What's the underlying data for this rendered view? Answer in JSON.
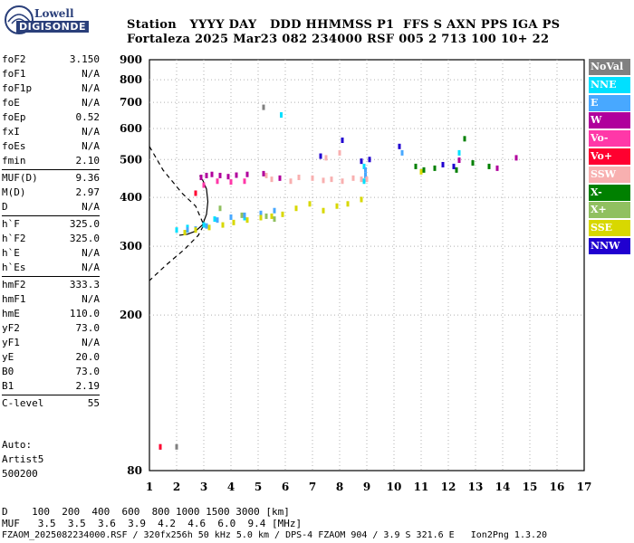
{
  "logo": {
    "top": "Lowell",
    "bottom": "DIGISONDE"
  },
  "header": {
    "line1": "Station   YYYY DAY   DDD HHMMSS P1  FFS S AXN PPS IGA PS",
    "line2": "Fortaleza 2025 Mar23 082 234000 RSF 005 2 713 100 10+ 22"
  },
  "params": [
    [
      {
        "name": "foF2",
        "value": "3.150"
      },
      {
        "name": "foF1",
        "value": "N/A"
      },
      {
        "name": "foF1p",
        "value": "N/A"
      },
      {
        "name": "foE",
        "value": "N/A"
      },
      {
        "name": "foEp",
        "value": "0.52"
      },
      {
        "name": "fxI",
        "value": "N/A"
      },
      {
        "name": "foEs",
        "value": "N/A"
      },
      {
        "name": "fmin",
        "value": "2.10"
      }
    ],
    [
      {
        "name": "MUF(D)",
        "value": "9.36"
      },
      {
        "name": "M(D)",
        "value": "2.97"
      },
      {
        "name": "D",
        "value": "N/A"
      }
    ],
    [
      {
        "name": "h`F",
        "value": "325.0"
      },
      {
        "name": "h`F2",
        "value": "325.0"
      },
      {
        "name": "h`E",
        "value": "N/A"
      },
      {
        "name": "h`Es",
        "value": "N/A"
      }
    ],
    [
      {
        "name": "hmF2",
        "value": "333.3"
      },
      {
        "name": "hmF1",
        "value": "N/A"
      },
      {
        "name": "hmE",
        "value": "110.0"
      },
      {
        "name": "yF2",
        "value": "73.0"
      },
      {
        "name": "yF1",
        "value": "N/A"
      },
      {
        "name": "yE",
        "value": "20.0"
      },
      {
        "name": "B0",
        "value": "73.0"
      },
      {
        "name": "B1",
        "value": "2.19"
      }
    ],
    [
      {
        "name": "C-level",
        "value": "55"
      }
    ]
  ],
  "auto": {
    "line1": "Auto:",
    "line2": "Artist5",
    "line3": "500200"
  },
  "footer": {
    "line1": "D    100  200  400  600  800 1000 1500 3000 [km]",
    "line2": "MUF   3.5  3.5  3.6  3.9  4.2  4.6  6.0  9.4 [MHz]",
    "line3": "FZAOM_2025082234000.RSF / 320fx256h 50 kHz 5.0 km / DPS-4 FZAOM 904 / 3.9 S 321.6 E   Ion2Png 1.3.20"
  },
  "legend": [
    {
      "label": "NoVal",
      "color": "#808080"
    },
    {
      "label": "NNE",
      "color": "#00e0ff"
    },
    {
      "label": "E",
      "color": "#48a8ff"
    },
    {
      "label": "W",
      "color": "#b0009c"
    },
    {
      "label": "Vo-",
      "color": "#ff38a8"
    },
    {
      "label": "Vo+",
      "color": "#ff0030"
    },
    {
      "label": "SSW",
      "color": "#f8b0b0"
    },
    {
      "label": "X-",
      "color": "#008000"
    },
    {
      "label": "X+",
      "color": "#90c060"
    },
    {
      "label": "SSE",
      "color": "#d8d800"
    },
    {
      "label": "NNW",
      "color": "#2000d0"
    }
  ],
  "chart_data": {
    "type": "scatter",
    "title": "",
    "xlabel": "",
    "ylabel": "",
    "x_ticks": [
      1,
      2,
      3,
      4,
      5,
      6,
      7,
      8,
      9,
      10,
      11,
      12,
      13,
      14,
      15,
      16,
      17
    ],
    "y_ticks": [
      80,
      200,
      300,
      400,
      500,
      600,
      700,
      800,
      900
    ],
    "xlim": [
      1,
      17
    ],
    "ylim": [
      80,
      900
    ],
    "y_scale": "log",
    "grid": true,
    "legend_placement": "right",
    "series": [
      {
        "color": "#808080",
        "points": [
          [
            1.4,
            92
          ],
          [
            2.0,
            92
          ],
          [
            5.2,
            680
          ]
        ]
      },
      {
        "color": "#00e0ff",
        "points": [
          [
            5.85,
            650
          ],
          [
            2.0,
            330
          ],
          [
            2.4,
            335
          ],
          [
            3.0,
            340
          ],
          [
            3.4,
            352
          ],
          [
            4.5,
            355
          ],
          [
            8.9,
            440
          ],
          [
            8.9,
            480
          ],
          [
            12.4,
            520
          ]
        ]
      },
      {
        "color": "#48a8ff",
        "points": [
          [
            2.4,
            330
          ],
          [
            2.7,
            332
          ],
          [
            3.1,
            338
          ],
          [
            3.5,
            350
          ],
          [
            4.0,
            356
          ],
          [
            4.5,
            360
          ],
          [
            5.1,
            364
          ],
          [
            5.6,
            370
          ],
          [
            8.95,
            455
          ],
          [
            8.95,
            470
          ],
          [
            10.3,
            520
          ]
        ]
      },
      {
        "color": "#b0009c",
        "points": [
          [
            2.9,
            450
          ],
          [
            3.1,
            455
          ],
          [
            3.3,
            458
          ],
          [
            3.6,
            455
          ],
          [
            3.9,
            452
          ],
          [
            4.2,
            456
          ],
          [
            4.6,
            458
          ],
          [
            5.2,
            460
          ],
          [
            5.8,
            448
          ],
          [
            12.4,
            498
          ],
          [
            13.8,
            475
          ],
          [
            14.5,
            505
          ]
        ]
      },
      {
        "color": "#ff38a8",
        "points": [
          [
            3.0,
            430
          ],
          [
            3.5,
            440
          ],
          [
            4.0,
            438
          ],
          [
            4.5,
            440
          ]
        ]
      },
      {
        "color": "#ff0030",
        "points": [
          [
            1.4,
            92
          ],
          [
            2.7,
            410
          ]
        ]
      },
      {
        "color": "#f8b0b0",
        "points": [
          [
            5.3,
            455
          ],
          [
            5.5,
            445
          ],
          [
            6.2,
            440
          ],
          [
            6.5,
            450
          ],
          [
            7.0,
            448
          ],
          [
            7.4,
            442
          ],
          [
            7.7,
            445
          ],
          [
            8.1,
            440
          ],
          [
            8.5,
            448
          ],
          [
            8.8,
            445
          ],
          [
            9.0,
            445
          ],
          [
            7.5,
            505
          ],
          [
            8.0,
            520
          ]
        ]
      },
      {
        "color": "#008000",
        "points": [
          [
            10.8,
            480
          ],
          [
            11.1,
            470
          ],
          [
            11.5,
            475
          ],
          [
            12.3,
            470
          ],
          [
            12.6,
            565
          ],
          [
            12.9,
            490
          ],
          [
            13.5,
            480
          ]
        ]
      },
      {
        "color": "#90c060",
        "points": [
          [
            3.6,
            375
          ],
          [
            4.4,
            360
          ],
          [
            5.3,
            358
          ],
          [
            5.6,
            352
          ]
        ]
      },
      {
        "color": "#d8d800",
        "points": [
          [
            2.3,
            325
          ],
          [
            2.7,
            330
          ],
          [
            3.2,
            335
          ],
          [
            3.7,
            340
          ],
          [
            4.1,
            345
          ],
          [
            4.6,
            350
          ],
          [
            5.1,
            355
          ],
          [
            5.5,
            358
          ],
          [
            5.9,
            362
          ],
          [
            6.4,
            375
          ],
          [
            6.9,
            385
          ],
          [
            7.4,
            370
          ],
          [
            7.9,
            380
          ],
          [
            8.3,
            385
          ],
          [
            8.8,
            395
          ],
          [
            11.0,
            465
          ]
        ]
      },
      {
        "color": "#2000d0",
        "points": [
          [
            7.3,
            510
          ],
          [
            8.1,
            560
          ],
          [
            8.8,
            495
          ],
          [
            9.1,
            500
          ],
          [
            10.2,
            540
          ],
          [
            11.8,
            485
          ],
          [
            12.2,
            480
          ]
        ]
      }
    ]
  }
}
